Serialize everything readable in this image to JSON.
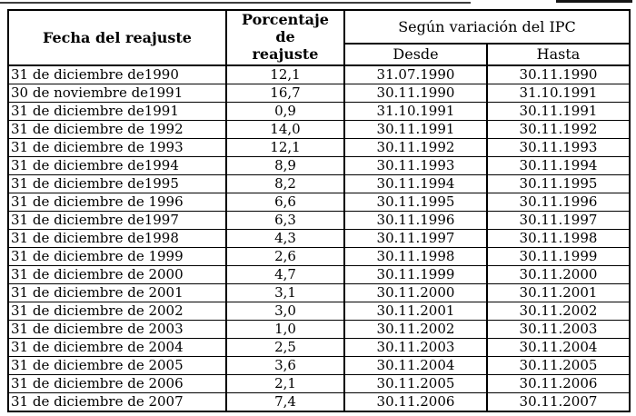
{
  "colors": {
    "background": "#ffffff",
    "text": "#000000",
    "border": "#000000"
  },
  "table": {
    "header": {
      "fecha": "Fecha del reajuste",
      "porcentaje": "Porcentaje\nde\nreajuste",
      "ipc": "Según variación del IPC",
      "desde": "Desde",
      "hasta": "Hasta"
    },
    "rows": [
      {
        "fecha": "31 de diciembre de1990",
        "porcentaje": "12,1",
        "desde": "31.07.1990",
        "hasta": "30.11.1990"
      },
      {
        "fecha": "30 de noviembre de1991",
        "porcentaje": "16,7",
        "desde": "30.11.1990",
        "hasta": "31.10.1991"
      },
      {
        "fecha": "31 de diciembre de1991",
        "porcentaje": "0,9",
        "desde": "31.10.1991",
        "hasta": "30.11.1991"
      },
      {
        "fecha": "31 de diciembre de 1992",
        "porcentaje": "14,0",
        "desde": "30.11.1991",
        "hasta": "30.11.1992"
      },
      {
        "fecha": "31 de diciembre de 1993",
        "porcentaje": "12,1",
        "desde": "30.11.1992",
        "hasta": "30.11.1993"
      },
      {
        "fecha": "31 de diciembre de1994",
        "porcentaje": "8,9",
        "desde": "30.11.1993",
        "hasta": "30.11.1994"
      },
      {
        "fecha": "31 de diciembre de1995",
        "porcentaje": "8,2",
        "desde": "30.11.1994",
        "hasta": "30.11.1995"
      },
      {
        "fecha": "31 de diciembre de 1996",
        "porcentaje": "6,6",
        "desde": "30.11.1995",
        "hasta": "30.11.1996"
      },
      {
        "fecha": "31 de diciembre de1997",
        "porcentaje": "6,3",
        "desde": "30.11.1996",
        "hasta": "30.11.1997"
      },
      {
        "fecha": "31 de diciembre de1998",
        "porcentaje": "4,3",
        "desde": "30.11.1997",
        "hasta": "30.11.1998"
      },
      {
        "fecha": "31 de diciembre de 1999",
        "porcentaje": "2,6",
        "desde": "30.11.1998",
        "hasta": "30.11.1999"
      },
      {
        "fecha": "31 de diciembre de 2000",
        "porcentaje": "4,7",
        "desde": "30.11.1999",
        "hasta": "30.11.2000"
      },
      {
        "fecha": "31 de diciembre de 2001",
        "porcentaje": "3,1",
        "desde": "30.11.2000",
        "hasta": "30.11.2001"
      },
      {
        "fecha": "31 de diciembre de 2002",
        "porcentaje": "3,0",
        "desde": "30.11.2001",
        "hasta": "30.11.2002"
      },
      {
        "fecha": "31 de diciembre de 2003",
        "porcentaje": "1,0",
        "desde": "30.11.2002",
        "hasta": "30.11.2003"
      },
      {
        "fecha": "31 de diciembre de 2004",
        "porcentaje": "2,5",
        "desde": "30.11.2003",
        "hasta": "30.11.2004"
      },
      {
        "fecha": "31 de diciembre de 2005",
        "porcentaje": "3,6",
        "desde": "30.11.2004",
        "hasta": "30.11.2005"
      },
      {
        "fecha": "31 de diciembre de 2006",
        "porcentaje": "2,1",
        "desde": "30.11.2005",
        "hasta": "30.11.2006"
      },
      {
        "fecha": "31 de diciembre de 2007",
        "porcentaje": "7,4",
        "desde": "30.11.2006",
        "hasta": "30.11.2007"
      }
    ]
  }
}
